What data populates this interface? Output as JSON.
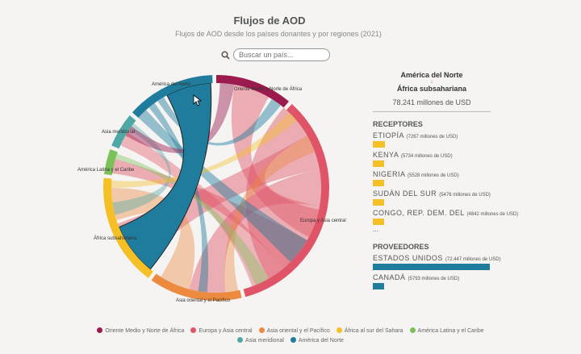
{
  "title": "Flujos de AOD",
  "subtitle": "Flujos de AOD desde los países donantes y por regiones (2021)",
  "search": {
    "placeholder": "Buscar un país..."
  },
  "chart_data": {
    "type": "chord",
    "title": "Flujos de AOD",
    "groups": [
      {
        "name": "Oriente Medio y Norte de África",
        "color": "#9b1b4f"
      },
      {
        "name": "Europa y Asia central",
        "color": "#e05467"
      },
      {
        "name": "Asia oriental y el Pacífico",
        "color": "#ec8a3f"
      },
      {
        "name": "África al sur del Sahara",
        "color": "#f5c026"
      },
      {
        "name": "América Latina y el Caribe",
        "color": "#7cc05a"
      },
      {
        "name": "Asia meridional",
        "color": "#4fa7a6"
      },
      {
        "name": "América del Norte",
        "color": "#1f7c9c"
      }
    ],
    "arc_labels": [
      "Oriente Medio y Norte de África",
      "Europa y Asia central",
      "Asia oriental y el Pacífico",
      "África subsahariana",
      "América Latina y el Caribe",
      "Asia meridional",
      "América del Norte"
    ],
    "highlighted": {
      "from": "América del Norte",
      "to": "África subsahariana"
    }
  },
  "panel": {
    "from": "América del Norte",
    "arrow": "↓",
    "to": "África subsahariana",
    "total": "78.241 millones de USD",
    "receptores_title": "RECEPTORES",
    "receptores": [
      {
        "name": "ETIOPÍA",
        "value": "(7267 millones de USD)",
        "share": 0.1
      },
      {
        "name": "KENYA",
        "value": "(5734 millones de USD)",
        "share": 0.079
      },
      {
        "name": "NIGERIA",
        "value": "(5528 millones de USD)",
        "share": 0.076
      },
      {
        "name": "SUDÁN DEL SUR",
        "value": "(5476 millones de USD)",
        "share": 0.076
      },
      {
        "name": "CONGO, REP. DEM. DEL",
        "value": "(4842 millones de USD)",
        "share": 0.067
      }
    ],
    "ellipsis": "...",
    "proveedores_title": "PROVEEDORES",
    "proveedores": [
      {
        "name": "ESTADOS UNIDOS",
        "value": "(72.447 millones de USD)",
        "share": 1
      },
      {
        "name": "CANADÁ",
        "value": "(5793 millones de USD)",
        "share": 0.08
      }
    ],
    "receptor_color": "#f5c026",
    "proveedor_color": "#1f7c9c"
  }
}
